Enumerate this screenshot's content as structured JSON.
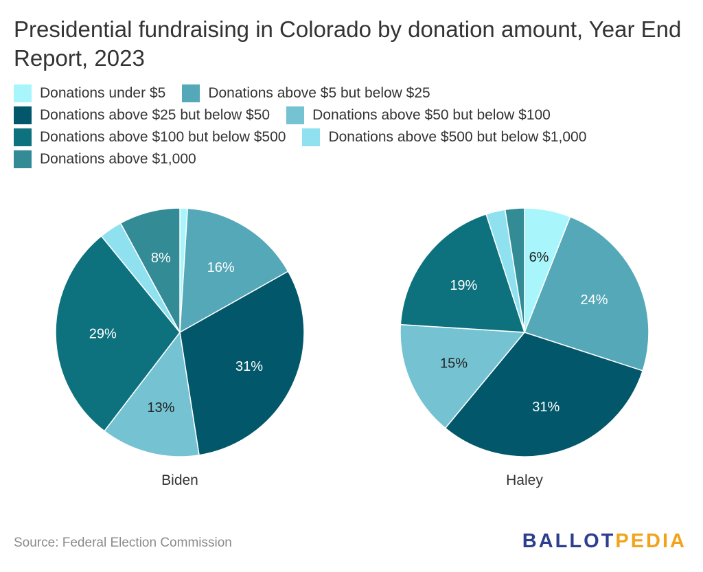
{
  "title": "Presidential fundraising in Colorado by donation amount, Year End Report, 2023",
  "source": "Source: Federal Election Commission",
  "logo": {
    "part1": "BALLOT",
    "part2": "PEDIA"
  },
  "chart_data": {
    "type": "pie",
    "legend_placement": "top",
    "categories": [
      {
        "label": "Donations under $5",
        "color": "#a8f5fb"
      },
      {
        "label": "Donations above $5 but below $25",
        "color": "#55a8b7"
      },
      {
        "label": "Donations above $25 but below $50",
        "color": "#03576a"
      },
      {
        "label": "Donations above $50 but below $100",
        "color": "#75c3d2"
      },
      {
        "label": "Donations above $100 but below $500",
        "color": "#0d717e"
      },
      {
        "label": "Donations above $500 but below $1,000",
        "color": "#8fe1ef"
      },
      {
        "label": "Donations above $1,000",
        "color": "#338b96"
      }
    ],
    "series": [
      {
        "name": "Biden",
        "values": [
          1,
          16,
          31,
          13,
          29,
          3,
          8
        ]
      },
      {
        "name": "Haley",
        "values": [
          6,
          24,
          31,
          15,
          19,
          2.5,
          2.5
        ]
      }
    ]
  }
}
